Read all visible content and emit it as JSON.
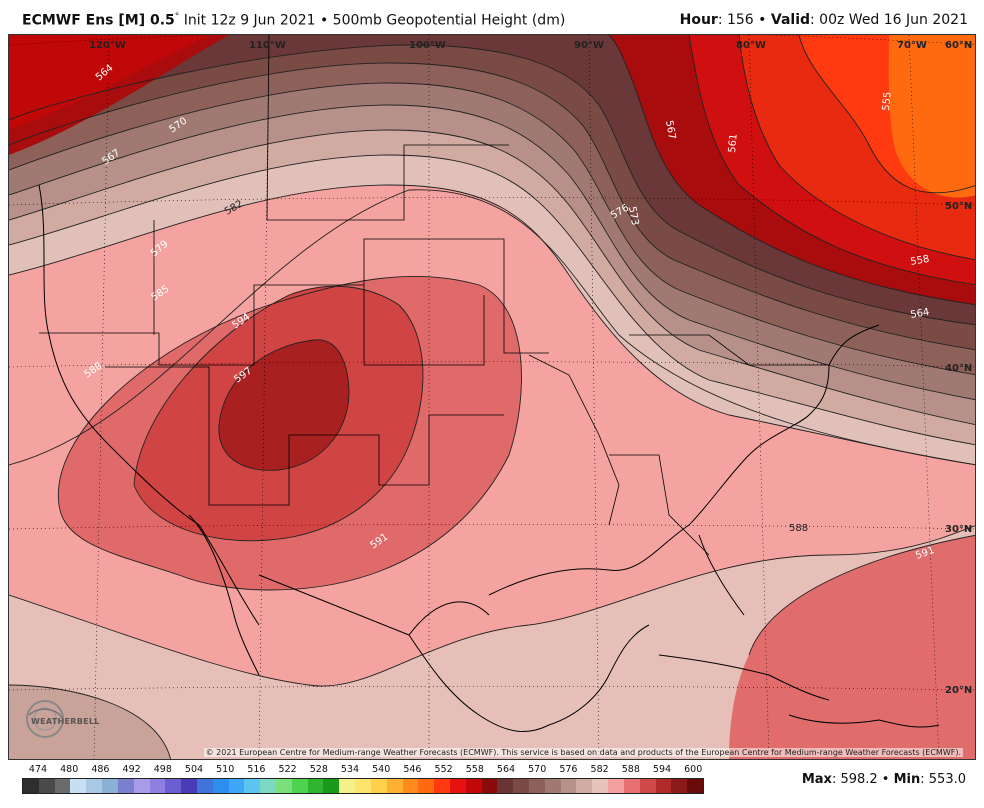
{
  "header": {
    "model": "ECMWF Ens [M] 0.5",
    "degree": "°",
    "init": " Init 12z 9 Jun 2021 • 500mb Geopotential Height (dm)",
    "hour_label": "Hour",
    "hour_value": ": 156 • ",
    "valid_label": "Valid",
    "valid_value": ": 00z Wed 16 Jun 2021"
  },
  "map": {
    "lon_labels": [
      "120°W",
      "110°W",
      "100°W",
      "90°W",
      "80°W",
      "70°W"
    ],
    "lat_labels": [
      "60°N",
      "50°N",
      "40°N",
      "30°N",
      "20°N"
    ],
    "contour_labels": [
      "564",
      "567",
      "570",
      "582",
      "579",
      "585",
      "588",
      "594",
      "597",
      "591",
      "573",
      "576",
      "567",
      "561",
      "555",
      "558",
      "564",
      "588",
      "591"
    ],
    "copyright": "© 2021 European Centre for Medium-range Weather Forecasts (ECMWF). This service is based on data and products of the European Centre for Medium-range Weather Forecasts (ECMWF).",
    "logo_text": "WEATHERBELL"
  },
  "colorbar": {
    "labels": [
      "474",
      "480",
      "486",
      "492",
      "498",
      "504",
      "510",
      "516",
      "522",
      "528",
      "534",
      "540",
      "546",
      "552",
      "558",
      "564",
      "570",
      "576",
      "582",
      "588",
      "594",
      "600"
    ],
    "colors": [
      "#2e2e2e",
      "#4a4a4a",
      "#6b6b6b",
      "#c8def2",
      "#a9c8e6",
      "#8ab0d3",
      "#7a7fcf",
      "#a89ce8",
      "#8e7fe0",
      "#6a5ed0",
      "#4a3cb8",
      "#3f74d9",
      "#2e8ef0",
      "#3fa7f7",
      "#5ec4f0",
      "#7ad9c0",
      "#7be07a",
      "#4fd24f",
      "#2fb52f",
      "#1a9a1a",
      "#f4f08a",
      "#fde46a",
      "#ffd04a",
      "#ffb030",
      "#ff8a1e",
      "#ff6a10",
      "#ff3a10",
      "#e81010",
      "#c00808",
      "#8c0a0a",
      "#6a3434",
      "#7a4a44",
      "#8d615a",
      "#a07a72",
      "#b79189",
      "#d1aaa2",
      "#e6c4bc",
      "#f5a0a0",
      "#e67070",
      "#d04a4a",
      "#b02a2a",
      "#8a1a1a",
      "#6a0a0a"
    ],
    "max_label": "Max",
    "max_value": ": 598.2 • ",
    "min_label": "Min",
    "min_value": ": 553.0"
  }
}
